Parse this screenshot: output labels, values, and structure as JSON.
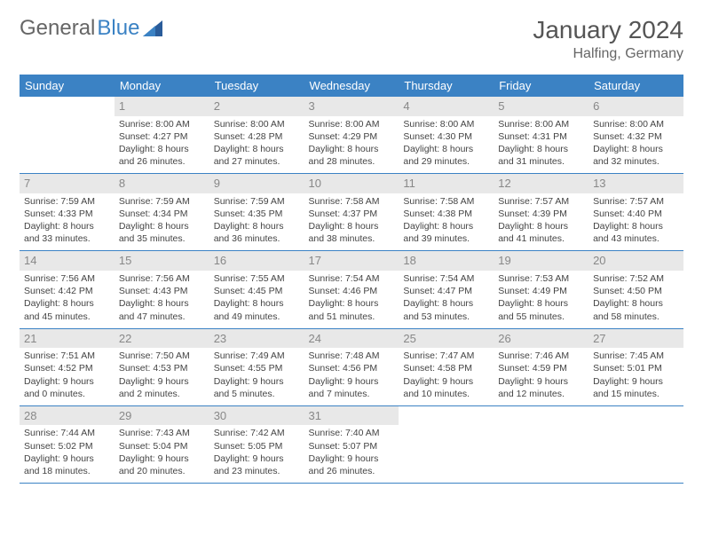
{
  "logo": {
    "part1": "General",
    "part2": "Blue"
  },
  "title": "January 2024",
  "location": "Halfing, Germany",
  "colors": {
    "header_bg": "#3b82c4",
    "header_text": "#ffffff",
    "daynum_bg": "#e8e8e8",
    "daynum_text": "#888888",
    "body_text": "#444444",
    "divider": "#3b82c4"
  },
  "weekdays": [
    "Sunday",
    "Monday",
    "Tuesday",
    "Wednesday",
    "Thursday",
    "Friday",
    "Saturday"
  ],
  "weeks": [
    [
      {
        "day": "",
        "lines": [
          "",
          "",
          "",
          ""
        ]
      },
      {
        "day": "1",
        "lines": [
          "Sunrise: 8:00 AM",
          "Sunset: 4:27 PM",
          "Daylight: 8 hours",
          "and 26 minutes."
        ]
      },
      {
        "day": "2",
        "lines": [
          "Sunrise: 8:00 AM",
          "Sunset: 4:28 PM",
          "Daylight: 8 hours",
          "and 27 minutes."
        ]
      },
      {
        "day": "3",
        "lines": [
          "Sunrise: 8:00 AM",
          "Sunset: 4:29 PM",
          "Daylight: 8 hours",
          "and 28 minutes."
        ]
      },
      {
        "day": "4",
        "lines": [
          "Sunrise: 8:00 AM",
          "Sunset: 4:30 PM",
          "Daylight: 8 hours",
          "and 29 minutes."
        ]
      },
      {
        "day": "5",
        "lines": [
          "Sunrise: 8:00 AM",
          "Sunset: 4:31 PM",
          "Daylight: 8 hours",
          "and 31 minutes."
        ]
      },
      {
        "day": "6",
        "lines": [
          "Sunrise: 8:00 AM",
          "Sunset: 4:32 PM",
          "Daylight: 8 hours",
          "and 32 minutes."
        ]
      }
    ],
    [
      {
        "day": "7",
        "lines": [
          "Sunrise: 7:59 AM",
          "Sunset: 4:33 PM",
          "Daylight: 8 hours",
          "and 33 minutes."
        ]
      },
      {
        "day": "8",
        "lines": [
          "Sunrise: 7:59 AM",
          "Sunset: 4:34 PM",
          "Daylight: 8 hours",
          "and 35 minutes."
        ]
      },
      {
        "day": "9",
        "lines": [
          "Sunrise: 7:59 AM",
          "Sunset: 4:35 PM",
          "Daylight: 8 hours",
          "and 36 minutes."
        ]
      },
      {
        "day": "10",
        "lines": [
          "Sunrise: 7:58 AM",
          "Sunset: 4:37 PM",
          "Daylight: 8 hours",
          "and 38 minutes."
        ]
      },
      {
        "day": "11",
        "lines": [
          "Sunrise: 7:58 AM",
          "Sunset: 4:38 PM",
          "Daylight: 8 hours",
          "and 39 minutes."
        ]
      },
      {
        "day": "12",
        "lines": [
          "Sunrise: 7:57 AM",
          "Sunset: 4:39 PM",
          "Daylight: 8 hours",
          "and 41 minutes."
        ]
      },
      {
        "day": "13",
        "lines": [
          "Sunrise: 7:57 AM",
          "Sunset: 4:40 PM",
          "Daylight: 8 hours",
          "and 43 minutes."
        ]
      }
    ],
    [
      {
        "day": "14",
        "lines": [
          "Sunrise: 7:56 AM",
          "Sunset: 4:42 PM",
          "Daylight: 8 hours",
          "and 45 minutes."
        ]
      },
      {
        "day": "15",
        "lines": [
          "Sunrise: 7:56 AM",
          "Sunset: 4:43 PM",
          "Daylight: 8 hours",
          "and 47 minutes."
        ]
      },
      {
        "day": "16",
        "lines": [
          "Sunrise: 7:55 AM",
          "Sunset: 4:45 PM",
          "Daylight: 8 hours",
          "and 49 minutes."
        ]
      },
      {
        "day": "17",
        "lines": [
          "Sunrise: 7:54 AM",
          "Sunset: 4:46 PM",
          "Daylight: 8 hours",
          "and 51 minutes."
        ]
      },
      {
        "day": "18",
        "lines": [
          "Sunrise: 7:54 AM",
          "Sunset: 4:47 PM",
          "Daylight: 8 hours",
          "and 53 minutes."
        ]
      },
      {
        "day": "19",
        "lines": [
          "Sunrise: 7:53 AM",
          "Sunset: 4:49 PM",
          "Daylight: 8 hours",
          "and 55 minutes."
        ]
      },
      {
        "day": "20",
        "lines": [
          "Sunrise: 7:52 AM",
          "Sunset: 4:50 PM",
          "Daylight: 8 hours",
          "and 58 minutes."
        ]
      }
    ],
    [
      {
        "day": "21",
        "lines": [
          "Sunrise: 7:51 AM",
          "Sunset: 4:52 PM",
          "Daylight: 9 hours",
          "and 0 minutes."
        ]
      },
      {
        "day": "22",
        "lines": [
          "Sunrise: 7:50 AM",
          "Sunset: 4:53 PM",
          "Daylight: 9 hours",
          "and 2 minutes."
        ]
      },
      {
        "day": "23",
        "lines": [
          "Sunrise: 7:49 AM",
          "Sunset: 4:55 PM",
          "Daylight: 9 hours",
          "and 5 minutes."
        ]
      },
      {
        "day": "24",
        "lines": [
          "Sunrise: 7:48 AM",
          "Sunset: 4:56 PM",
          "Daylight: 9 hours",
          "and 7 minutes."
        ]
      },
      {
        "day": "25",
        "lines": [
          "Sunrise: 7:47 AM",
          "Sunset: 4:58 PM",
          "Daylight: 9 hours",
          "and 10 minutes."
        ]
      },
      {
        "day": "26",
        "lines": [
          "Sunrise: 7:46 AM",
          "Sunset: 4:59 PM",
          "Daylight: 9 hours",
          "and 12 minutes."
        ]
      },
      {
        "day": "27",
        "lines": [
          "Sunrise: 7:45 AM",
          "Sunset: 5:01 PM",
          "Daylight: 9 hours",
          "and 15 minutes."
        ]
      }
    ],
    [
      {
        "day": "28",
        "lines": [
          "Sunrise: 7:44 AM",
          "Sunset: 5:02 PM",
          "Daylight: 9 hours",
          "and 18 minutes."
        ]
      },
      {
        "day": "29",
        "lines": [
          "Sunrise: 7:43 AM",
          "Sunset: 5:04 PM",
          "Daylight: 9 hours",
          "and 20 minutes."
        ]
      },
      {
        "day": "30",
        "lines": [
          "Sunrise: 7:42 AM",
          "Sunset: 5:05 PM",
          "Daylight: 9 hours",
          "and 23 minutes."
        ]
      },
      {
        "day": "31",
        "lines": [
          "Sunrise: 7:40 AM",
          "Sunset: 5:07 PM",
          "Daylight: 9 hours",
          "and 26 minutes."
        ]
      },
      {
        "day": "",
        "lines": [
          "",
          "",
          "",
          ""
        ]
      },
      {
        "day": "",
        "lines": [
          "",
          "",
          "",
          ""
        ]
      },
      {
        "day": "",
        "lines": [
          "",
          "",
          "",
          ""
        ]
      }
    ]
  ]
}
